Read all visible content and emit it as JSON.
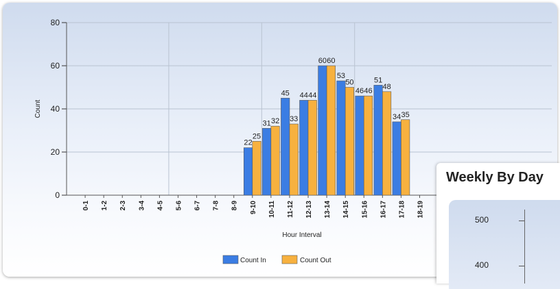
{
  "chart_data": {
    "type": "bar",
    "xlabel": "Hour Interval",
    "ylabel": "Count",
    "ylim": [
      0,
      80
    ],
    "yticks": [
      0,
      20,
      40,
      60,
      80
    ],
    "grid": true,
    "legend_position": "bottom",
    "categories": [
      "0-1",
      "1-2",
      "2-3",
      "3-4",
      "4-5",
      "5-6",
      "6-7",
      "7-8",
      "8-9",
      "9-10",
      "10-11",
      "11-12",
      "12-13",
      "13-14",
      "14-15",
      "15-16",
      "16-17",
      "17-18",
      "18-19"
    ],
    "series": [
      {
        "name": "Count In",
        "color": "#3b7de3",
        "values": [
          null,
          null,
          null,
          null,
          null,
          null,
          null,
          null,
          null,
          22,
          31,
          45,
          44,
          60,
          53,
          46,
          51,
          34,
          null
        ]
      },
      {
        "name": "Count Out",
        "color": "#f7b13f",
        "values": [
          null,
          null,
          null,
          null,
          null,
          null,
          null,
          null,
          null,
          25,
          32,
          33,
          44,
          60,
          50,
          46,
          48,
          35,
          null
        ]
      }
    ]
  },
  "overlay": {
    "title": "Weekly By Day",
    "ticks": [
      "500",
      "400"
    ]
  }
}
